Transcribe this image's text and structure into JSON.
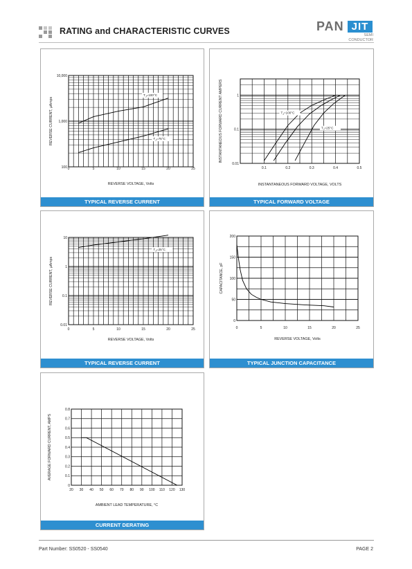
{
  "header": {
    "title": "RATING and CHARACTERISTIC CURVES",
    "logo_pan": "PAN",
    "logo_jit": "JIT",
    "logo_semi": "SEMI",
    "logo_conductor": "CONDUCTOR"
  },
  "footer": {
    "part_number": "Part Number: SS0520 - SS0540",
    "page": "PAGE  2"
  },
  "chart_data": [
    {
      "id": "reverse1",
      "type": "line",
      "caption": "TYPICAL REVERSE CURRENT",
      "xlabel": "REVERSE VOLTAGE, Volts",
      "ylabel": "REVERSE CURRENT, μAmps",
      "x_scale": "linear",
      "y_scale": "log",
      "xlim": [
        0,
        25
      ],
      "ylim": [
        100,
        10000
      ],
      "x_ticks": [
        0,
        5,
        10,
        15,
        20,
        25
      ],
      "y_ticks": [
        100,
        1000,
        10000
      ],
      "y_tick_labels": [
        "100",
        "1,000",
        "10,000"
      ],
      "series": [
        {
          "name": "TJ=100°C",
          "x": [
            2,
            5,
            10,
            15,
            20
          ],
          "y": [
            900,
            1250,
            1650,
            2050,
            3200
          ]
        },
        {
          "name": "TJ=75°C",
          "x": [
            2,
            5,
            10,
            15,
            20
          ],
          "y": [
            205,
            260,
            350,
            470,
            680
          ]
        }
      ],
      "annotations": [
        {
          "text": "TJ=100°C",
          "x": 15,
          "y": 3500
        },
        {
          "text": "TJ=75°C",
          "x": 17,
          "y": 390
        }
      ]
    },
    {
      "id": "forward",
      "type": "line",
      "caption": "TYPICAL FORWARD VOLTAGE",
      "xlabel": "INSTANTANEOUS FORWARD VOLTAGE, VOLTS",
      "ylabel": "INSTANTANEOUS FORWARD CURRENT AMPERS",
      "x_scale": "linear",
      "y_scale": "log",
      "xlim": [
        0,
        0.5
      ],
      "ylim": [
        0.01,
        3
      ],
      "x_ticks": [
        0.1,
        0.2,
        0.3,
        0.4,
        0.5
      ],
      "x_tick_labels": [
        "0.1",
        "0.2",
        "0.3",
        "0.4",
        "0.5"
      ],
      "y_ticks": [
        0.01,
        0.1,
        1
      ],
      "y_tick_labels": [
        "0.01",
        "0.1",
        "1"
      ],
      "series": [
        {
          "name": "TJ=100°C",
          "x": [
            0.1,
            0.15,
            0.2,
            0.25,
            0.3,
            0.35,
            0.4
          ],
          "y": [
            0.012,
            0.04,
            0.13,
            0.3,
            0.5,
            0.72,
            1.0
          ]
        },
        {
          "name": "",
          "x": [
            0.14,
            0.19,
            0.24,
            0.29,
            0.34,
            0.38,
            0.42
          ],
          "y": [
            0.012,
            0.04,
            0.12,
            0.28,
            0.5,
            0.72,
            1.0
          ]
        },
        {
          "name": "TJ=25°C",
          "x": [
            0.23,
            0.27,
            0.31,
            0.35,
            0.39,
            0.44
          ],
          "y": [
            0.012,
            0.04,
            0.13,
            0.3,
            0.55,
            1.0
          ]
        }
      ],
      "annotations": [
        {
          "text": "TJ=100°C",
          "x": 0.17,
          "y": 0.28
        },
        {
          "text": "TJ=25°C",
          "x": 0.34,
          "y": 0.1
        }
      ]
    },
    {
      "id": "reverse2",
      "type": "line",
      "caption": "TYPICAL REVERSE CURRENT",
      "xlabel": "REVERSE VOLTAGE, Volts",
      "ylabel": "REVERSE CURRENT, μAmps",
      "x_scale": "linear",
      "y_scale": "log",
      "xlim": [
        0,
        25
      ],
      "ylim": [
        0.01,
        10
      ],
      "x_ticks": [
        0,
        5,
        10,
        15,
        20,
        25
      ],
      "y_ticks": [
        0.01,
        0.1,
        1,
        10
      ],
      "y_tick_labels": [
        "0.01",
        "0.1",
        "1",
        "10"
      ],
      "series": [
        {
          "name": "TJ=25°C",
          "x": [
            2,
            5,
            10,
            15,
            20
          ],
          "y": [
            4.5,
            5.5,
            7.0,
            9.0,
            12.0
          ]
        }
      ],
      "annotations": [
        {
          "text": "TJ=25°C",
          "x": 17,
          "y": 3.5
        }
      ]
    },
    {
      "id": "capacitance",
      "type": "line",
      "caption": "TYPICAL JUNCTION CAPACITANCE",
      "xlabel": "REVERSE VOLTAGE, Volts",
      "ylabel": "CAPACITANCE, pF",
      "x_scale": "linear",
      "y_scale": "linear",
      "xlim": [
        0,
        25
      ],
      "ylim": [
        0,
        200
      ],
      "x_ticks": [
        0,
        5,
        10,
        15,
        20,
        25
      ],
      "y_ticks": [
        0,
        50,
        100,
        150,
        200
      ],
      "series": [
        {
          "name": "",
          "x": [
            0,
            0.3,
            0.7,
            1.2,
            2,
            3,
            4,
            5,
            7,
            10,
            14,
            18,
            20
          ],
          "y": [
            180,
            150,
            120,
            95,
            75,
            62,
            55,
            50,
            44,
            40,
            37,
            35,
            32
          ]
        }
      ]
    },
    {
      "id": "derating",
      "type": "line",
      "caption": "CURRENT DERATING",
      "xlabel": "AMBIENT LEAD TEMPERATURE, °C",
      "ylabel": "AVERAGE FORWARD CURRENT, AMPS",
      "x_scale": "linear",
      "y_scale": "linear",
      "xlim": [
        20,
        130
      ],
      "ylim": [
        0,
        0.8
      ],
      "x_ticks": [
        20,
        30,
        40,
        50,
        60,
        70,
        80,
        90,
        100,
        110,
        120,
        130
      ],
      "y_ticks": [
        0,
        0.1,
        0.2,
        0.3,
        0.4,
        0.5,
        0.6,
        0.7,
        0.8
      ],
      "y_tick_labels": [
        "0",
        "0.1",
        "0.2",
        "0.3",
        "0.4",
        "0.5",
        "0.6",
        "0.7",
        "0.8"
      ],
      "series": [
        {
          "name": "",
          "x": [
            30,
            35,
            125
          ],
          "y": [
            0.5,
            0.5,
            0.0
          ]
        }
      ]
    }
  ]
}
